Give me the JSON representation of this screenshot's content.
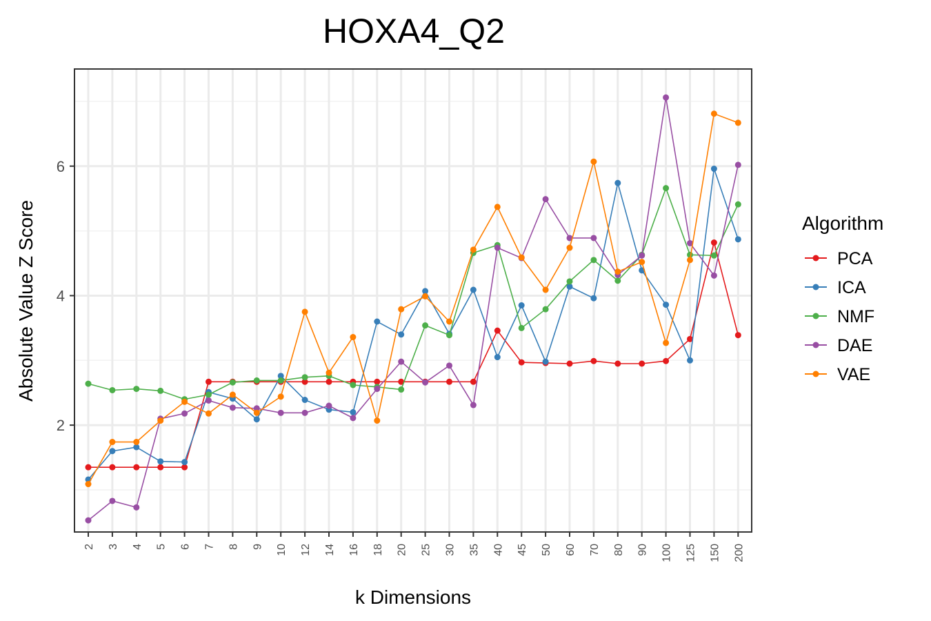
{
  "chart_data": {
    "type": "line",
    "title": "HOXA4_Q2",
    "xlabel": "k Dimensions",
    "ylabel": "Absolute Value Z Score",
    "categories": [
      "2",
      "3",
      "4",
      "5",
      "6",
      "7",
      "8",
      "9",
      "10",
      "12",
      "14",
      "16",
      "18",
      "20",
      "25",
      "30",
      "35",
      "40",
      "45",
      "50",
      "60",
      "70",
      "80",
      "90",
      "100",
      "125",
      "150",
      "200"
    ],
    "ylim": [
      0.35,
      7.5
    ],
    "yticks": [
      2,
      4,
      6
    ],
    "grid": true,
    "legend_title": "Algorithm",
    "legend_position": "right",
    "series": [
      {
        "name": "PCA",
        "color": "#E41A1C",
        "values": [
          1.35,
          1.35,
          1.35,
          1.35,
          1.35,
          2.67,
          2.67,
          2.67,
          2.67,
          2.67,
          2.67,
          2.67,
          2.67,
          2.67,
          2.67,
          2.67,
          2.67,
          3.46,
          2.97,
          2.96,
          2.95,
          2.99,
          2.95,
          2.95,
          2.99,
          3.33,
          4.82,
          3.39
        ]
      },
      {
        "name": "ICA",
        "color": "#377EB8",
        "values": [
          1.16,
          1.6,
          1.66,
          1.44,
          1.43,
          2.51,
          2.41,
          2.09,
          2.76,
          2.39,
          2.24,
          2.2,
          3.6,
          3.4,
          4.07,
          3.41,
          4.09,
          3.05,
          3.85,
          2.98,
          4.14,
          3.96,
          5.74,
          4.39,
          3.86,
          3.0,
          5.96,
          4.87
        ]
      },
      {
        "name": "NMF",
        "color": "#4DAF4A",
        "values": [
          2.64,
          2.54,
          2.56,
          2.53,
          2.4,
          2.47,
          2.66,
          2.69,
          2.69,
          2.74,
          2.76,
          2.62,
          2.59,
          2.55,
          3.54,
          3.39,
          4.66,
          4.78,
          3.5,
          3.79,
          4.22,
          4.55,
          4.23,
          4.63,
          5.66,
          4.63,
          4.62,
          5.41
        ]
      },
      {
        "name": "DAE",
        "color": "#984EA3",
        "values": [
          0.53,
          0.83,
          0.73,
          2.1,
          2.18,
          2.38,
          2.27,
          2.26,
          2.19,
          2.19,
          2.3,
          2.11,
          2.56,
          2.98,
          2.66,
          2.92,
          2.31,
          4.74,
          4.58,
          5.49,
          4.89,
          4.89,
          4.32,
          4.62,
          7.06,
          4.81,
          4.31,
          6.02
        ]
      },
      {
        "name": "VAE",
        "color": "#FF7F00",
        "values": [
          1.09,
          1.74,
          1.74,
          2.07,
          2.36,
          2.18,
          2.47,
          2.19,
          2.44,
          3.75,
          2.81,
          3.36,
          2.07,
          3.79,
          3.99,
          3.6,
          4.71,
          5.37,
          4.59,
          4.09,
          4.74,
          6.07,
          4.37,
          4.52,
          3.27,
          4.55,
          6.81,
          6.67
        ]
      }
    ]
  }
}
